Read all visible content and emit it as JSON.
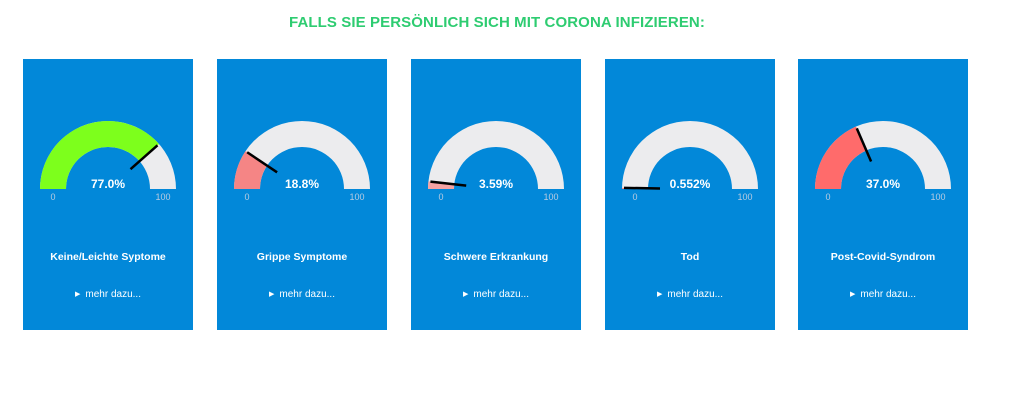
{
  "header": {
    "title": "FALLS SIE PERSÖNLICH SICH MIT CORONA INFIZIEREN:"
  },
  "gauge_scale": {
    "min_label": "0",
    "max_label": "100",
    "min": 0,
    "max": 100
  },
  "colors": {
    "card_bg": "#0288d9",
    "track": "#ececee",
    "needle": "#000000",
    "title": "#2ecc71"
  },
  "cards": [
    {
      "value": 77.0,
      "value_label": "77.0%",
      "fill_color": "#7dff1c",
      "label": "Keine/Leichte Syptome",
      "more_label": "mehr dazu..."
    },
    {
      "value": 18.8,
      "value_label": "18.8%",
      "fill_color": "#f58585",
      "label": "Grippe Symptome",
      "more_label": "mehr dazu..."
    },
    {
      "value": 3.59,
      "value_label": "3.59%",
      "fill_color": "#f5a3a3",
      "label": "Schwere Erkrankung",
      "more_label": "mehr dazu..."
    },
    {
      "value": 0.552,
      "value_label": "0.552%",
      "fill_color": "#f58585",
      "label": "Tod",
      "more_label": "mehr dazu..."
    },
    {
      "value": 37.0,
      "value_label": "37.0%",
      "fill_color": "#ff6b6b",
      "label": "Post-Covid-Syndrom",
      "more_label": "mehr dazu..."
    }
  ]
}
